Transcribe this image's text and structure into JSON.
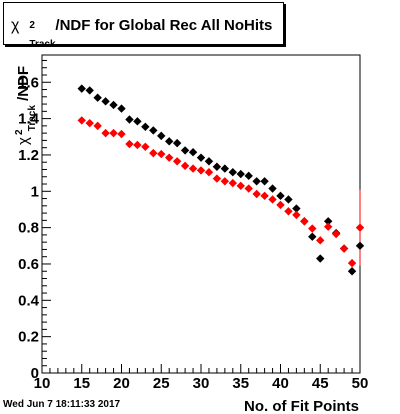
{
  "title": {
    "chi": "χ",
    "sup": "2",
    "sub": "Track",
    "rest": "/NDF for Global Rec All NoHits"
  },
  "timestamp": "Wed Jun  7 18:11:33 2017",
  "chart_data": {
    "type": "scatter",
    "title": "χ²_Track/NDF for Global Rec All NoHits",
    "xlabel": "No. of Fit Points",
    "ylabel": "χ²_Track/NDF",
    "xlim": [
      10,
      50
    ],
    "ylim": [
      0,
      1.75
    ],
    "x_ticks": [
      "10",
      "15",
      "20",
      "25",
      "30",
      "35",
      "40",
      "45",
      "50"
    ],
    "y_ticks": [
      "0",
      "0.2",
      "0.4",
      "0.6",
      "0.8",
      "1",
      "1.2",
      "1.4",
      "1.6"
    ],
    "grid": false,
    "series": [
      {
        "color": "#000000",
        "points": [
          [
            15,
            1.565
          ],
          [
            16,
            1.555
          ],
          [
            17,
            1.515
          ],
          [
            18,
            1.495
          ],
          [
            19,
            1.475
          ],
          [
            20,
            1.455
          ],
          [
            21,
            1.395
          ],
          [
            22,
            1.385
          ],
          [
            23,
            1.355
          ],
          [
            24,
            1.335
          ],
          [
            25,
            1.305
          ],
          [
            26,
            1.275
          ],
          [
            27,
            1.265
          ],
          [
            28,
            1.225
          ],
          [
            29,
            1.215
          ],
          [
            30,
            1.185
          ],
          [
            31,
            1.165
          ],
          [
            32,
            1.135
          ],
          [
            33,
            1.125
          ],
          [
            34,
            1.105
          ],
          [
            35,
            1.095
          ],
          [
            36,
            1.085
          ],
          [
            37,
            1.055
          ],
          [
            38,
            1.055
          ],
          [
            39,
            1.015
          ],
          [
            40,
            0.975
          ],
          [
            41,
            0.955
          ],
          [
            42,
            0.905
          ],
          [
            43,
            0.835
          ],
          [
            44,
            0.75
          ],
          [
            45,
            0.63
          ],
          [
            46,
            0.835
          ],
          [
            47,
            0.77
          ],
          [
            48,
            0.685
          ],
          [
            49,
            0.56
          ],
          [
            50,
            0.7
          ]
        ]
      },
      {
        "color": "#ff0000",
        "points": [
          [
            15,
            1.39
          ],
          [
            16,
            1.375
          ],
          [
            17,
            1.36
          ],
          [
            18,
            1.32
          ],
          [
            19,
            1.32
          ],
          [
            20,
            1.315
          ],
          [
            21,
            1.26
          ],
          [
            22,
            1.255
          ],
          [
            23,
            1.245
          ],
          [
            24,
            1.21
          ],
          [
            25,
            1.205
          ],
          [
            26,
            1.185
          ],
          [
            27,
            1.165
          ],
          [
            28,
            1.14
          ],
          [
            29,
            1.125
          ],
          [
            30,
            1.115
          ],
          [
            31,
            1.105
          ],
          [
            32,
            1.07
          ],
          [
            33,
            1.055
          ],
          [
            34,
            1.045
          ],
          [
            35,
            1.03
          ],
          [
            36,
            1.015
          ],
          [
            37,
            0.985
          ],
          [
            38,
            0.975
          ],
          [
            39,
            0.955
          ],
          [
            40,
            0.925
          ],
          [
            41,
            0.89
          ],
          [
            42,
            0.87
          ],
          [
            43,
            0.835
          ],
          [
            44,
            0.795
          ],
          [
            45,
            0.73
          ],
          [
            46,
            0.805
          ],
          [
            47,
            0.765
          ],
          [
            48,
            0.685
          ],
          [
            49,
            0.605
          ],
          [
            50,
            0.8
          ]
        ]
      }
    ],
    "error_bars": [
      {
        "series": 1,
        "x": 50,
        "low": 0.59,
        "high": 1.01
      }
    ]
  }
}
